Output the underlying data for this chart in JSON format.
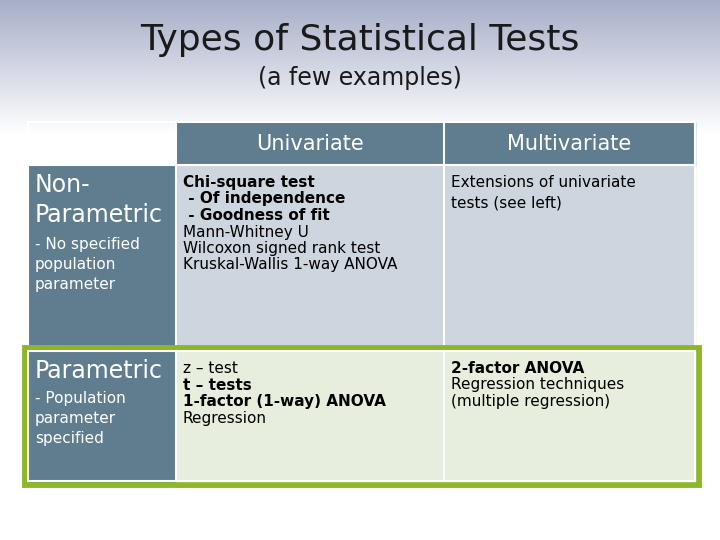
{
  "title": "Types of Statistical Tests",
  "subtitle": "(a few examples)",
  "header_bg": "#607d8f",
  "header_text_color": "#ffffff",
  "row_label_bg": "#607d8f",
  "row1_content_bg": "#cdd5de",
  "row2_content_bg": "#e8eedd",
  "row2_border_color": "#8ab828",
  "col_headers": [
    "Univariate",
    "Multivariate"
  ],
  "title_fontsize": 26,
  "subtitle_fontsize": 17,
  "header_fontsize": 15,
  "label_large_fontsize": 17,
  "label_small_fontsize": 11,
  "content_fontsize": 11
}
